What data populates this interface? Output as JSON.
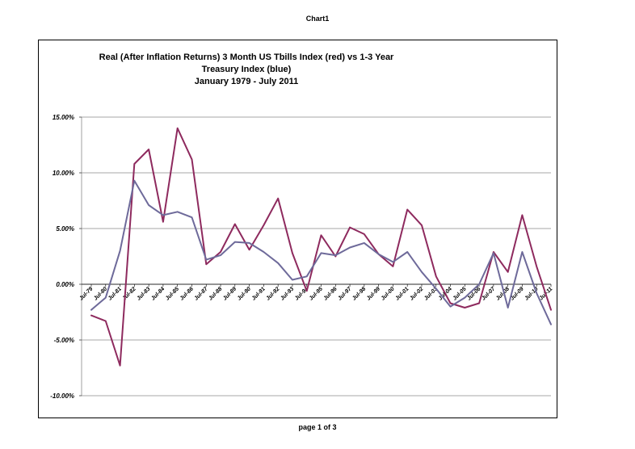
{
  "page": {
    "header": "Chart1",
    "footer": "page 1 of 3"
  },
  "chart_data": {
    "type": "line",
    "title_lines": [
      "Real (After Inflation Returns)  3 Month US Tbills Index (red) vs  1-3 Year",
      "Treasury Index (blue)",
      "January 1979 - July 2011"
    ],
    "xlabel": "",
    "ylabel": "",
    "ylim": [
      -0.1,
      0.15
    ],
    "y_ticks": [
      -0.1,
      -0.05,
      0.0,
      0.05,
      0.1,
      0.15
    ],
    "y_tick_labels": [
      "-10.00%",
      "-5.00%",
      "0.00%",
      "5.00%",
      "10.00%",
      "15.00%"
    ],
    "grid": true,
    "legend": "none",
    "categories": [
      "Jul-79",
      "Jul-80",
      "Jul-81",
      "Jul-82",
      "Jul-83",
      "Jul-84",
      "Jul-85",
      "Jul-86",
      "Jul-87",
      "Jul-88",
      "Jul-89",
      "Jul-90",
      "Jul-91",
      "Jul-92",
      "Jul-93",
      "Jul-94",
      "Jul-95",
      "Jul-96",
      "Jul-97",
      "Jul-98",
      "Jul-99",
      "Jul-00",
      "Jul-01",
      "Jul-02",
      "Jul-03",
      "Jul-04",
      "Jul-05",
      "Jul-06",
      "Jul-07",
      "Jul-08",
      "Jul-09",
      "Jul-10",
      "Jul-11"
    ],
    "series": [
      {
        "color": "#8E2A5E",
        "values": [
          -0.028,
          -0.033,
          -0.073,
          0.108,
          0.121,
          0.056,
          0.14,
          0.112,
          0.018,
          0.029,
          0.054,
          0.031,
          0.053,
          0.077,
          0.028,
          -0.006,
          0.044,
          0.025,
          0.051,
          0.045,
          0.027,
          0.016,
          0.067,
          0.053,
          0.007,
          -0.017,
          -0.021,
          -0.017,
          0.029,
          0.011,
          0.062,
          0.016,
          -0.023
        ]
      },
      {
        "color": "#6E6A9A",
        "values": [
          -0.023,
          -0.012,
          0.03,
          0.093,
          0.071,
          0.062,
          0.065,
          0.06,
          0.022,
          0.026,
          0.038,
          0.037,
          0.029,
          0.019,
          0.004,
          0.007,
          0.028,
          0.026,
          0.033,
          0.037,
          0.027,
          0.02,
          0.029,
          0.011,
          -0.004,
          -0.02,
          -0.012,
          0.0,
          0.028,
          -0.021,
          0.029,
          -0.008,
          -0.036
        ]
      }
    ]
  }
}
